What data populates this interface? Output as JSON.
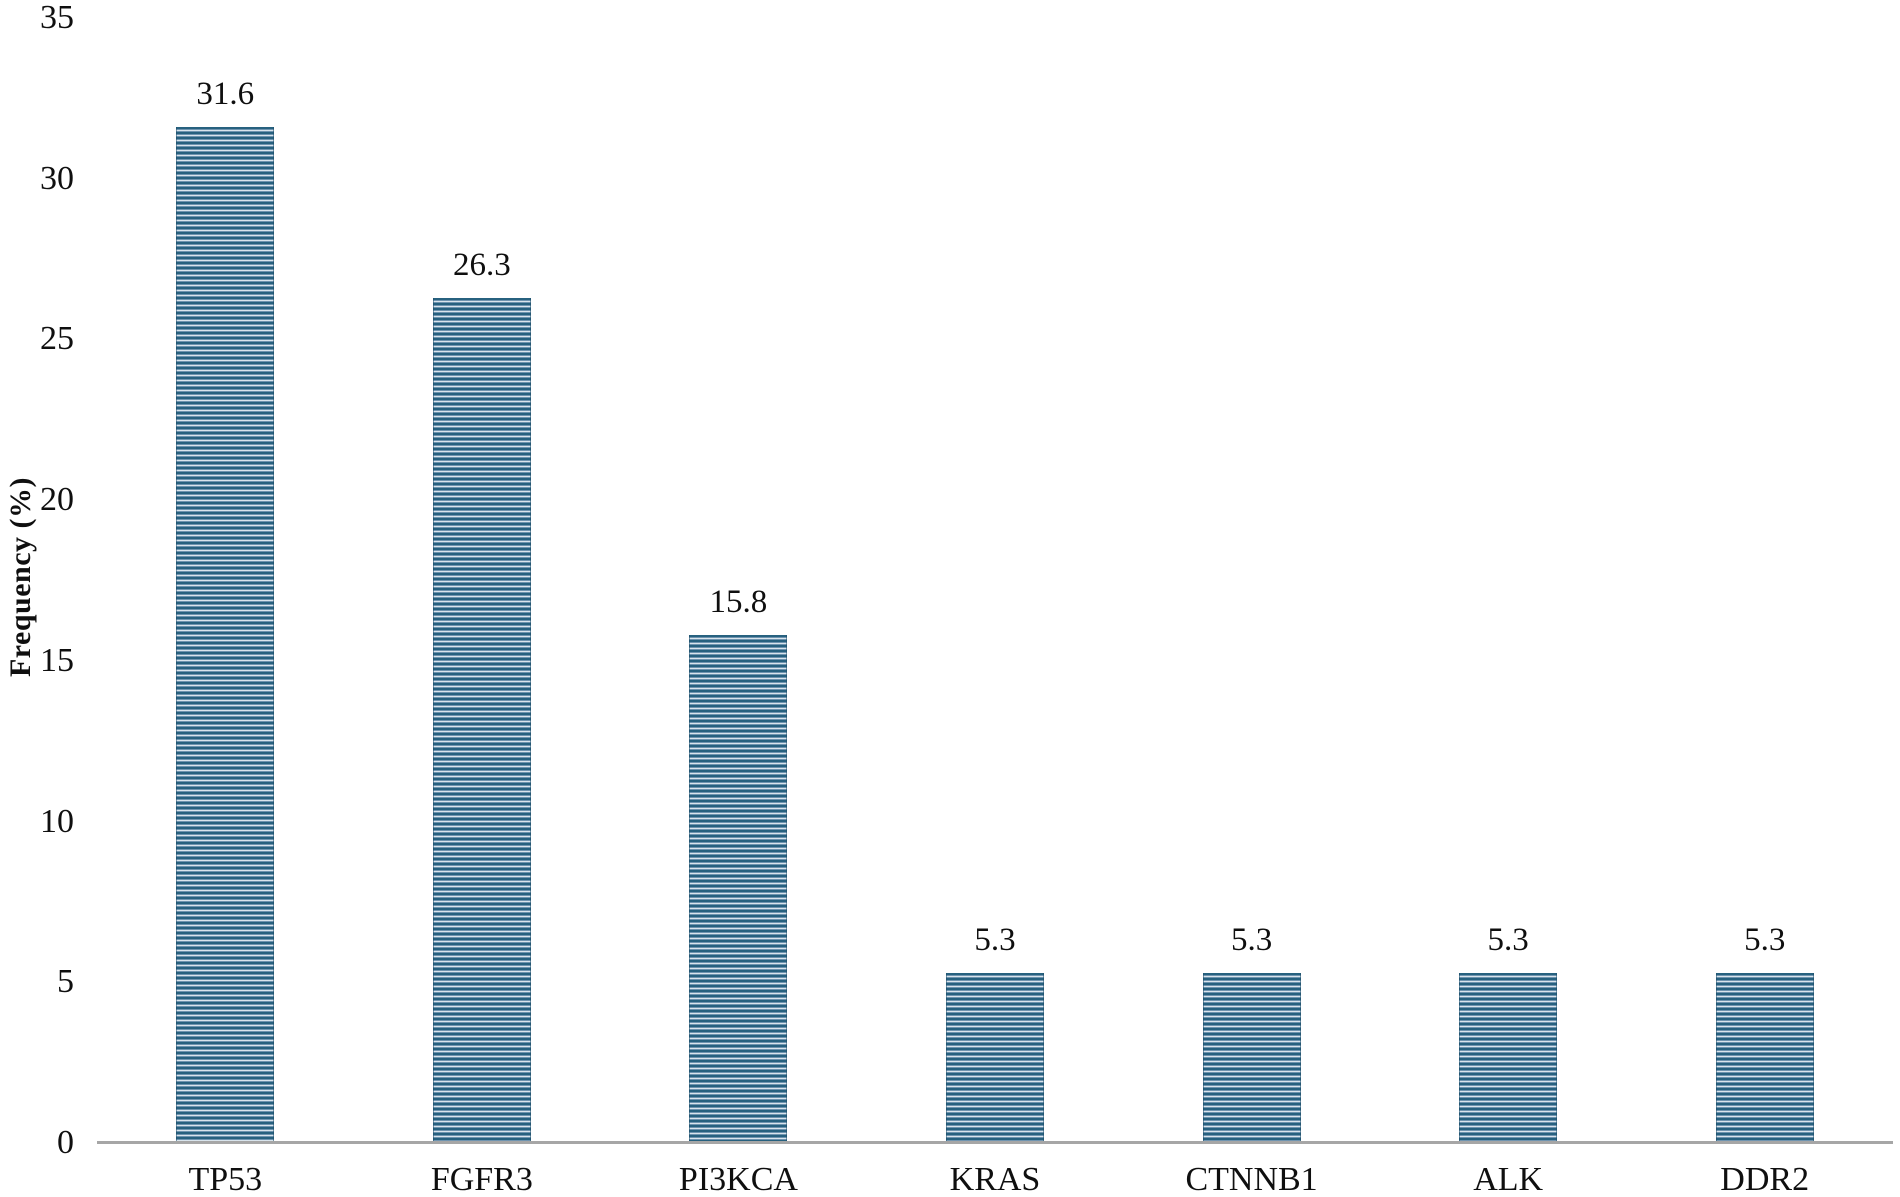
{
  "chart_data": {
    "type": "bar",
    "categories": [
      "TP53",
      "FGFR3",
      "PI3KCA",
      "KRAS",
      "CTNNB1",
      "ALK",
      "DDR2"
    ],
    "values": [
      31.6,
      26.3,
      15.8,
      5.3,
      5.3,
      5.3,
      5.3
    ],
    "value_labels": [
      "31.6",
      "26.3",
      "15.8",
      "5.3",
      "5.3",
      "5.3",
      "5.3"
    ],
    "title": "",
    "xlabel": "",
    "ylabel": "Frequency (%)",
    "ylim": [
      0,
      35
    ],
    "yticks": [
      0,
      5,
      10,
      15,
      20,
      25,
      30,
      35
    ],
    "grid": false,
    "legend_position": "none",
    "colors": {
      "bar_stripe_dark": "#27617f",
      "bar_stripe_mid": "#6f94b0",
      "bar_stripe_light": "#d9e4ec",
      "axis_line": "#a6a6a6",
      "text": "#0f0f0f"
    }
  }
}
